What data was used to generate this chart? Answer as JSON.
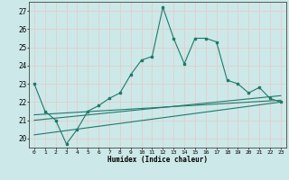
{
  "x": [
    0,
    1,
    2,
    3,
    4,
    5,
    6,
    7,
    8,
    9,
    10,
    11,
    12,
    13,
    14,
    15,
    16,
    17,
    18,
    19,
    20,
    21,
    22,
    23
  ],
  "main_y": [
    23.0,
    21.5,
    21.0,
    19.7,
    20.5,
    21.5,
    21.8,
    22.2,
    22.5,
    23.5,
    24.3,
    24.5,
    27.2,
    25.5,
    24.1,
    25.5,
    25.5,
    25.3,
    23.2,
    23.0,
    22.5,
    22.8,
    22.2,
    22.0
  ],
  "trend1": [
    0,
    21.3,
    23,
    22.1
  ],
  "trend2": [
    0,
    21.0,
    23,
    22.35
  ],
  "trend3": [
    0,
    20.2,
    23,
    22.0
  ],
  "line_color": "#1e7a6a",
  "bg_color": "#cce8e8",
  "grid_color": "#d4d4d4",
  "xlabel": "Humidex (Indice chaleur)",
  "ylim": [
    19.5,
    27.5
  ],
  "xlim": [
    -0.5,
    23.5
  ],
  "yticks": [
    20,
    21,
    22,
    23,
    24,
    25,
    26,
    27
  ],
  "xticks": [
    0,
    1,
    2,
    3,
    4,
    5,
    6,
    7,
    8,
    9,
    10,
    11,
    12,
    13,
    14,
    15,
    16,
    17,
    18,
    19,
    20,
    21,
    22,
    23
  ]
}
